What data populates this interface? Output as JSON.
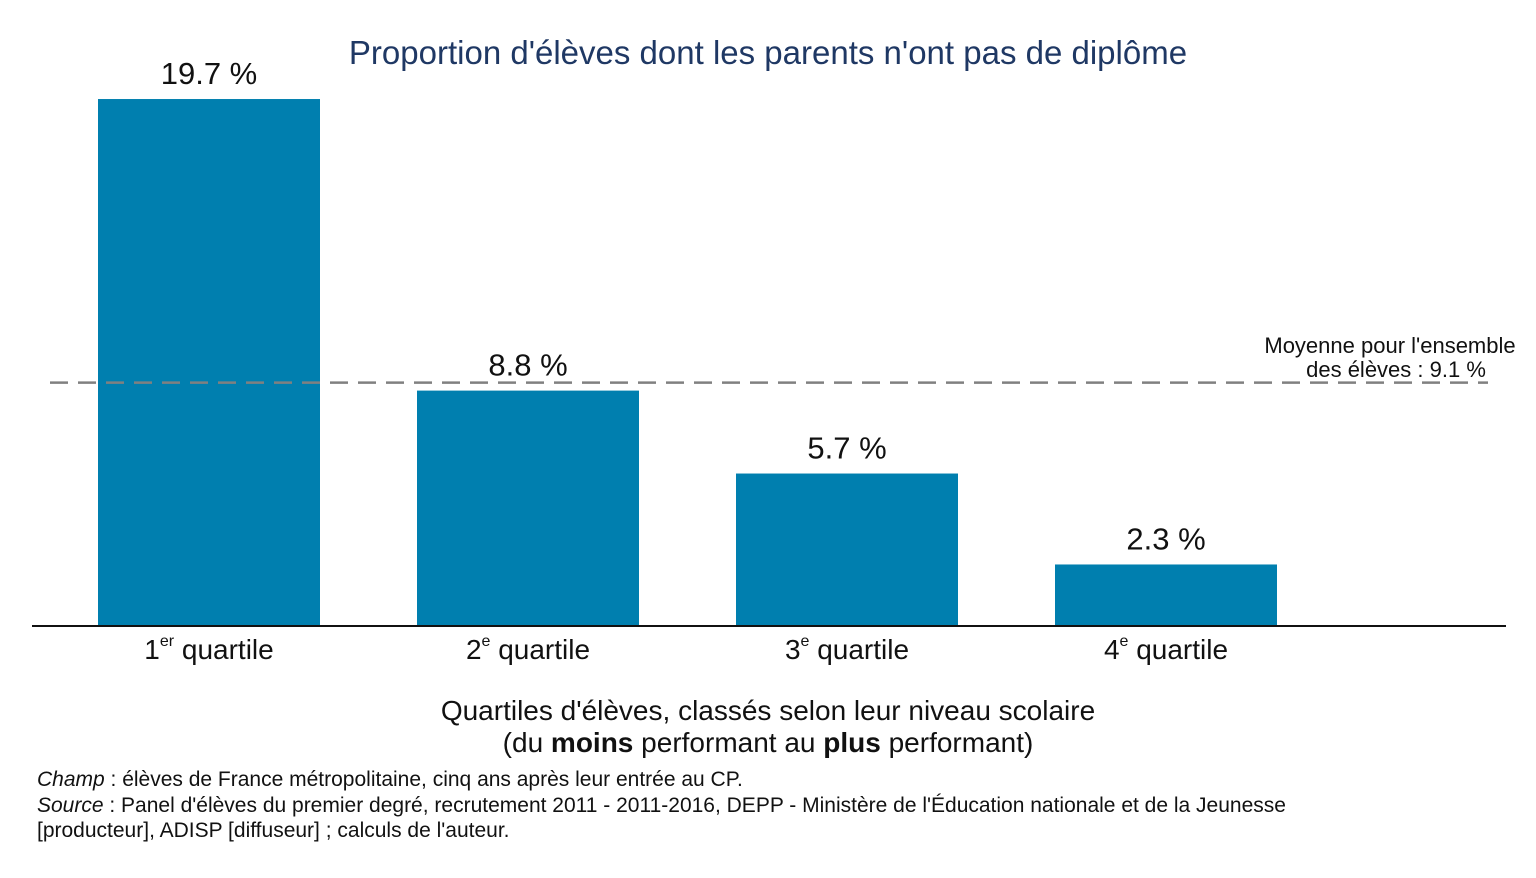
{
  "chart_data": {
    "type": "bar",
    "title": "Proportion d'élèves dont les parents n'ont pas de diplôme",
    "categories": [
      {
        "num": "1",
        "sup": "er",
        "word": "quartile"
      },
      {
        "num": "2",
        "sup": "e",
        "word": "quartile"
      },
      {
        "num": "3",
        "sup": "e",
        "word": "quartile"
      },
      {
        "num": "4",
        "sup": "e",
        "word": "quartile"
      }
    ],
    "values": [
      19.7,
      8.8,
      5.7,
      2.3
    ],
    "value_labels": [
      "19.7 %",
      "8.8 %",
      "5.7 %",
      "2.3 %"
    ],
    "bar_color": "#007faf",
    "ylim": [
      0,
      20
    ],
    "grid": false,
    "reference_line": {
      "value": 9.1,
      "style": "dashed",
      "color": "#808080",
      "label_line1": "Moyenne pour l'ensemble",
      "label_line2": "des élèves : 9.1 %"
    },
    "xlabel": {
      "line1": "Quartiles d'élèves, classés selon leur niveau scolaire",
      "line2_parts": [
        {
          "text": "(du ",
          "bold": false
        },
        {
          "text": "moins",
          "bold": true
        },
        {
          "text": " performant au ",
          "bold": false
        },
        {
          "text": "plus",
          "bold": true
        },
        {
          "text": " performant)",
          "bold": false
        }
      ]
    }
  },
  "notes": {
    "champ_label": "Champ",
    "champ_text": " : élèves de France métropolitaine, cinq ans après leur entrée au CP.",
    "source_label": "Source",
    "source_text": " : Panel d'élèves du premier degré, recrutement 2011 - 2011-2016, DEPP - Ministère de l'Éducation nationale et de la Jeunesse",
    "source_text_cont": "[producteur], ADISP [diffuseur] ; calculs de l'auteur."
  }
}
